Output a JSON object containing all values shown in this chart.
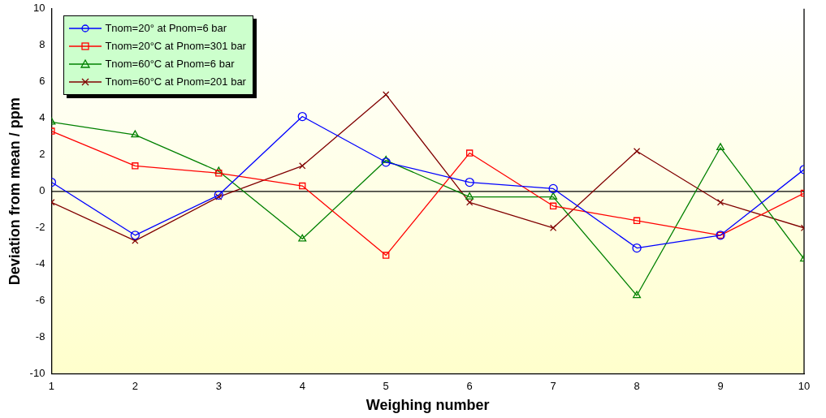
{
  "chart_data": {
    "type": "line",
    "xlabel": "Weighing number",
    "ylabel": "Deviation from mean / ppm",
    "x": [
      1,
      2,
      3,
      4,
      5,
      6,
      7,
      8,
      9,
      10
    ],
    "xlim": [
      1,
      10
    ],
    "xticks": [
      1,
      2,
      3,
      4,
      5,
      6,
      7,
      8,
      9,
      10
    ],
    "ylim": [
      -10,
      10
    ],
    "yticks": [
      -10,
      -8,
      -6,
      -4,
      -2,
      0,
      2,
      4,
      6,
      8,
      10
    ],
    "grid": false,
    "legend": "top left",
    "line_style": "solid",
    "ref_lines": [
      {
        "axis": "y",
        "value": 0,
        "color": "#000000"
      }
    ],
    "series": [
      {
        "name": "Tnom=20° at Pnom=6 bar",
        "color": "#0000ff",
        "marker": "circle",
        "values": [
          0.5,
          -2.4,
          -0.2,
          4.1,
          1.6,
          0.5,
          0.15,
          -3.1,
          -2.4,
          1.2
        ]
      },
      {
        "name": "Tnom=20°C at Pnom=301 bar",
        "color": "#ff0000",
        "marker": "square",
        "values": [
          3.3,
          1.4,
          1.0,
          0.3,
          -3.5,
          2.1,
          -0.8,
          -1.6,
          -2.4,
          -0.1
        ]
      },
      {
        "name": "Tnom=60°C at Pnom=6 bar",
        "color": "#008000",
        "marker": "triangle",
        "values": [
          3.8,
          3.1,
          1.1,
          -2.6,
          1.7,
          -0.3,
          -0.3,
          -5.7,
          2.4,
          -3.7
        ]
      },
      {
        "name": "Tnom=60°C at Pnom=201 bar",
        "color": "#800000",
        "marker": "cross",
        "values": [
          -0.6,
          -2.7,
          -0.3,
          1.4,
          5.3,
          -0.6,
          -2.0,
          2.2,
          -0.6,
          -2.0
        ]
      }
    ]
  }
}
